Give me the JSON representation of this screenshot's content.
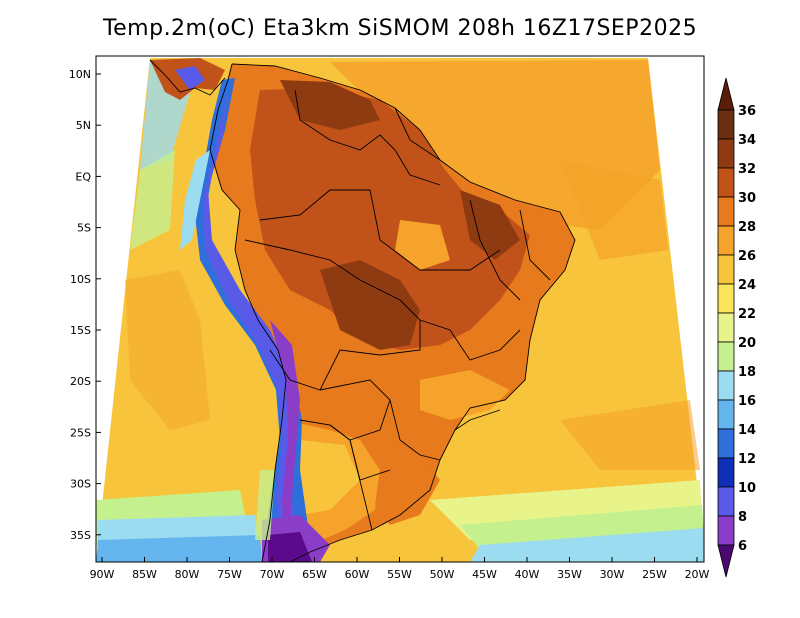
{
  "title": "Temp.2m(oC) Eta3km SiSMOM 208h 16Z17SEP2025",
  "lat_labels": [
    "10N",
    "5N",
    "EQ",
    "5S",
    "10S",
    "15S",
    "20S",
    "25S",
    "30S",
    "35S"
  ],
  "lon_labels": [
    "90W",
    "85W",
    "80W",
    "75W",
    "70W",
    "65W",
    "60W",
    "55W",
    "50W",
    "45W",
    "40W",
    "35W",
    "30W",
    "25W",
    "20W"
  ],
  "colorbar": {
    "labels": [
      "36",
      "34",
      "32",
      "30",
      "28",
      "26",
      "24",
      "22",
      "20",
      "18",
      "16",
      "14",
      "12",
      "10",
      "8",
      "6"
    ],
    "colors": [
      "#6b2e10",
      "#8f3b12",
      "#c0521a",
      "#e67a1c",
      "#f5a32a",
      "#f7c43c",
      "#f9e45a",
      "#e8f38a",
      "#c4f08e",
      "#9cdcf0",
      "#64b4ee",
      "#2e6fdc",
      "#0f2fb8",
      "#5a5ae8",
      "#8a3ec8",
      "#5a0a8a"
    ],
    "over_color": "#5a1e08",
    "under_color": "#4a0870",
    "unit": "oC"
  }
}
